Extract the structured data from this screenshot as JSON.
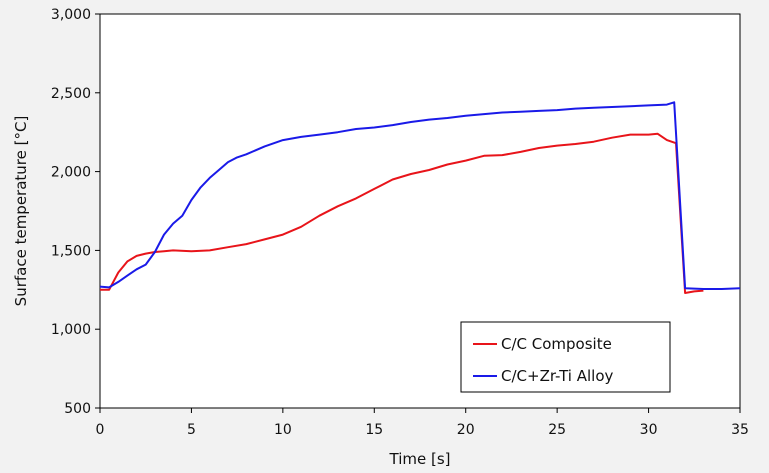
{
  "chart_data": {
    "type": "line",
    "title": "",
    "xlabel": "Time [s]",
    "ylabel": "Surface temperature [°C]",
    "xlim": [
      0,
      35
    ],
    "ylim": [
      500,
      3000
    ],
    "xticks": [
      0,
      5,
      10,
      15,
      20,
      25,
      30,
      35
    ],
    "yticks": [
      500,
      1000,
      1500,
      2000,
      2500,
      3000
    ],
    "xtick_labels": [
      "0",
      "5",
      "10",
      "15",
      "20",
      "25",
      "30",
      "35"
    ],
    "ytick_labels": [
      "500",
      "1,000",
      "1,500",
      "2,000",
      "2,500",
      "3,000"
    ],
    "grid": false,
    "legend_position": "bottom-right",
    "series": [
      {
        "name": "C/C Composite",
        "color": "#e8141a",
        "x": [
          0,
          0.5,
          1,
          1.5,
          2,
          2.5,
          3,
          3.5,
          4,
          5,
          6,
          7,
          8,
          9,
          10,
          11,
          12,
          13,
          14,
          15,
          16,
          17,
          18,
          19,
          20,
          21,
          22,
          23,
          24,
          25,
          26,
          27,
          28,
          29,
          30,
          30.5,
          31,
          31.5,
          32,
          32.5,
          33
        ],
        "y": [
          1250,
          1250,
          1360,
          1430,
          1465,
          1480,
          1490,
          1495,
          1500,
          1495,
          1500,
          1520,
          1540,
          1570,
          1600,
          1650,
          1720,
          1780,
          1830,
          1890,
          1950,
          1985,
          2010,
          2045,
          2070,
          2100,
          2105,
          2125,
          2150,
          2165,
          2175,
          2190,
          2215,
          2235,
          2235,
          2240,
          2200,
          2180,
          1230,
          1240,
          1245
        ]
      },
      {
        "name": "C/C+Zr-Ti Alloy",
        "color": "#1a1ae8",
        "x": [
          0,
          0.5,
          1,
          1.5,
          2,
          2.5,
          3,
          3.5,
          4,
          4.5,
          5,
          5.5,
          6,
          6.5,
          7,
          7.5,
          8,
          9,
          10,
          11,
          12,
          13,
          14,
          15,
          16,
          17,
          18,
          19,
          20,
          21,
          22,
          23,
          24,
          25,
          26,
          27,
          28,
          29,
          30,
          31,
          31.4,
          32,
          33,
          34,
          35
        ],
        "y": [
          1270,
          1265,
          1300,
          1340,
          1380,
          1410,
          1490,
          1600,
          1670,
          1720,
          1820,
          1900,
          1960,
          2010,
          2060,
          2090,
          2110,
          2160,
          2200,
          2220,
          2235,
          2250,
          2270,
          2280,
          2295,
          2315,
          2330,
          2340,
          2355,
          2365,
          2375,
          2380,
          2385,
          2390,
          2400,
          2405,
          2410,
          2415,
          2420,
          2425,
          2440,
          1260,
          1255,
          1255,
          1260
        ]
      }
    ]
  }
}
